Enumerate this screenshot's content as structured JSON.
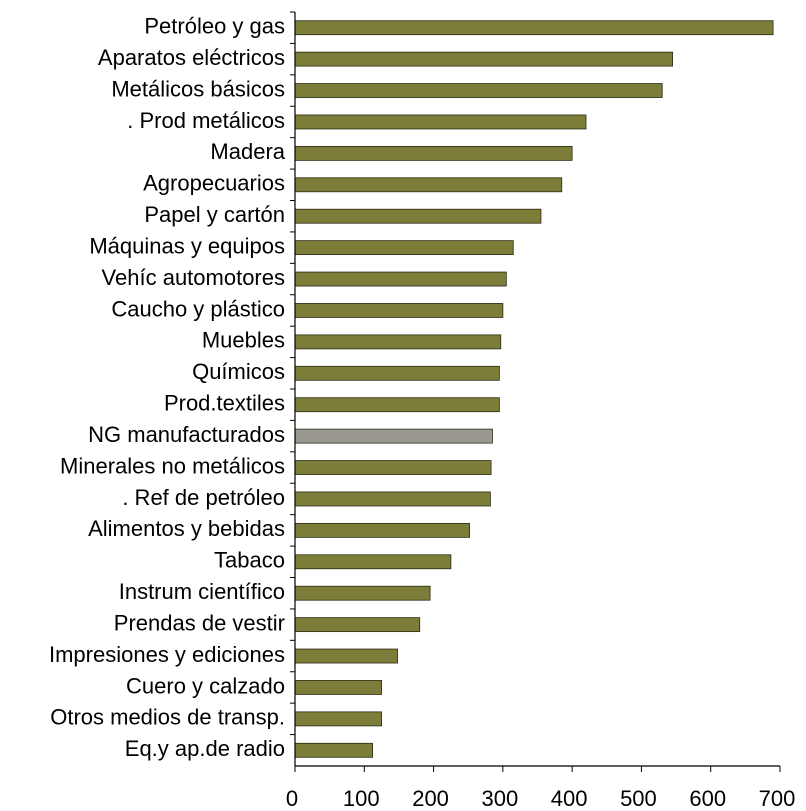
{
  "chart_data": {
    "type": "barh",
    "categories": [
      "Petróleo y gas",
      "Aparatos eléctricos",
      "Metálicos básicos",
      ".  Prod metálicos",
      "Madera",
      "Agropecuarios",
      "Papel y cartón",
      "Máquinas y equipos",
      "Vehíc automotores",
      "Caucho y plástico",
      "Muebles",
      "Químicos",
      "Prod.textiles",
      "NG manufacturados",
      "Minerales no metálicos",
      ".  Ref  de petróleo",
      "Alimentos y bebidas",
      "Tabaco",
      "Instrum científico",
      "Prendas de vestir",
      "Impresiones y ediciones",
      "Cuero y calzado",
      "Otros medios de transp.",
      "Eq.y ap.de radio"
    ],
    "values": [
      690,
      545,
      530,
      420,
      400,
      385,
      355,
      315,
      305,
      300,
      297,
      295,
      295,
      285,
      283,
      282,
      252,
      225,
      195,
      180,
      148,
      125,
      125,
      112
    ],
    "colors": [
      "#7b7d38",
      "#7b7d38",
      "#7b7d38",
      "#7b7d38",
      "#7b7d38",
      "#7b7d38",
      "#7b7d38",
      "#7b7d38",
      "#7b7d38",
      "#7b7d38",
      "#7b7d38",
      "#7b7d38",
      "#7b7d38",
      "#9a9890",
      "#7b7d38",
      "#7b7d38",
      "#7b7d38",
      "#7b7d38",
      "#7b7d38",
      "#7b7d38",
      "#7b7d38",
      "#7b7d38",
      "#7b7d38",
      "#7b7d38"
    ],
    "xlim": [
      0,
      700
    ],
    "xticks": [
      0,
      100,
      200,
      300,
      400,
      500,
      600,
      700
    ]
  }
}
